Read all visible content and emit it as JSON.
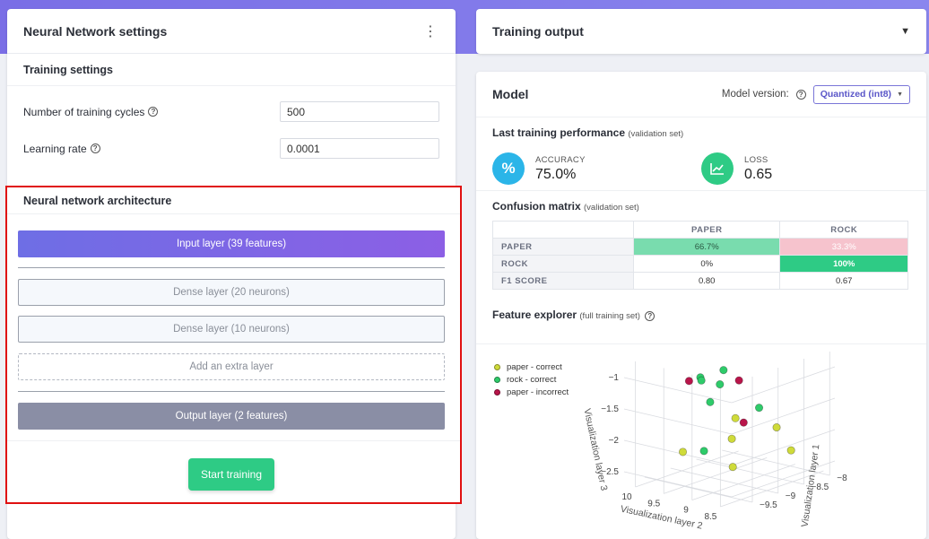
{
  "left_panel": {
    "title": "Neural Network settings",
    "menu_icon": "kebab-vertical-icon",
    "training_settings": {
      "title": "Training settings",
      "cycles_label": "Number of training cycles",
      "cycles_value": "500",
      "lr_label": "Learning rate",
      "lr_value": "0.0001"
    },
    "architecture": {
      "title": "Neural network architecture",
      "input_layer": "Input layer (39 features)",
      "dense_1": "Dense layer (20 neurons)",
      "dense_2": "Dense layer (10 neurons)",
      "add_layer": "Add an extra layer",
      "output_layer": "Output layer (2 features)",
      "start_button": "Start training"
    }
  },
  "output_panel": {
    "title": "Training output",
    "chevron_icon": "caret-down-icon"
  },
  "model_panel": {
    "title": "Model",
    "version_label": "Model version:",
    "version_value": "Quantized (int8)",
    "performance": {
      "title": "Last training performance",
      "subtitle": "(validation set)",
      "accuracy_label": "ACCURACY",
      "accuracy_value": "75.0%",
      "loss_label": "LOSS",
      "loss_value": "0.65",
      "accuracy_icon": "percent-icon",
      "loss_icon": "chart-trend-icon",
      "accuracy_color": "#2bb5e8",
      "loss_color": "#2ecb85"
    },
    "confusion": {
      "title": "Confusion matrix",
      "subtitle": "(validation set)",
      "col_headers": [
        "PAPER",
        "ROCK"
      ],
      "rows": [
        {
          "label": "PAPER",
          "cells": [
            "66.7%",
            "33.3%"
          ]
        },
        {
          "label": "ROCK",
          "cells": [
            "0%",
            "100%"
          ]
        },
        {
          "label": "F1 SCORE",
          "cells": [
            "0.80",
            "0.67"
          ]
        }
      ]
    },
    "feature_explorer": {
      "title": "Feature explorer",
      "subtitle": "(full training set)",
      "legend": [
        {
          "label": "paper - correct",
          "color": "#cfdb3a"
        },
        {
          "label": "rock - correct",
          "color": "#2ecb6a"
        },
        {
          "label": "paper - incorrect",
          "color": "#b8154a"
        }
      ]
    }
  },
  "chart_data": {
    "type": "scatter",
    "xlabel": "Visualization layer 2",
    "ylabel": "Visualization layer 1",
    "zlabel": "Visualization layer 3",
    "x_ticks": [
      "10",
      "9.5",
      "9",
      "8.5"
    ],
    "y_ticks": [
      "−8",
      "−8.5",
      "−9",
      "−9.5"
    ],
    "z_ticks": [
      "−1",
      "−1.5",
      "−2",
      "−2.5"
    ],
    "series": [
      {
        "name": "paper - correct",
        "color": "#cfdb3a",
        "points": [
          [
            9.6,
            -8.4,
            -1.95
          ],
          [
            9.3,
            -8.8,
            -2.1
          ],
          [
            9.1,
            -9.0,
            -2.45
          ],
          [
            8.8,
            -8.2,
            -2.35
          ],
          [
            8.6,
            -8.7,
            -1.8
          ],
          [
            9.8,
            -9.2,
            -2.3
          ]
        ]
      },
      {
        "name": "rock - correct",
        "color": "#2ecb6a",
        "points": [
          [
            9.4,
            -9.3,
            -1.0
          ],
          [
            9.2,
            -9.5,
            -0.95
          ],
          [
            8.9,
            -9.4,
            -0.75
          ],
          [
            8.6,
            -9.8,
            -0.8
          ],
          [
            9.5,
            -9.0,
            -1.5
          ],
          [
            9.0,
            -8.6,
            -1.6
          ],
          [
            9.7,
            -8.9,
            -2.35
          ]
        ]
      },
      {
        "name": "paper - incorrect",
        "color": "#b8154a",
        "points": [
          [
            9.6,
            -9.3,
            -1.1
          ],
          [
            8.9,
            -9.1,
            -1.0
          ],
          [
            9.0,
            -8.9,
            -1.75
          ]
        ]
      }
    ]
  }
}
